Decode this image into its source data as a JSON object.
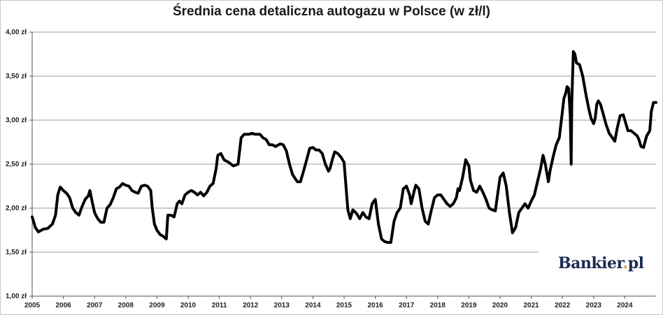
{
  "chart_data": {
    "type": "line",
    "title": "Średnia cena detaliczna autogazu w Polsce (w zł/l)",
    "xlabel": "",
    "ylabel": "",
    "xlim": [
      2005,
      2025
    ],
    "ylim": [
      1.0,
      4.0
    ],
    "grid": "horizontal",
    "y_ticks": [
      {
        "value": 1.0,
        "label": "1,00 zł"
      },
      {
        "value": 1.5,
        "label": "1,50 zł"
      },
      {
        "value": 2.0,
        "label": "2,00 zł"
      },
      {
        "value": 2.5,
        "label": "2,50 zł"
      },
      {
        "value": 3.0,
        "label": "3,00 zł"
      },
      {
        "value": 3.5,
        "label": "3,50 zł"
      },
      {
        "value": 4.0,
        "label": "4,00 zł"
      }
    ],
    "x_ticks": [
      "2005",
      "2006",
      "2007",
      "2008",
      "2009",
      "2010",
      "2011",
      "2012",
      "2013",
      "2014",
      "2015",
      "2016",
      "2017",
      "2018",
      "2019",
      "2020",
      "2021",
      "2022",
      "2023",
      "2024"
    ],
    "series": [
      {
        "color": "#000000",
        "points": [
          [
            2005.0,
            1.9
          ],
          [
            2005.1,
            1.78
          ],
          [
            2005.2,
            1.73
          ],
          [
            2005.35,
            1.76
          ],
          [
            2005.5,
            1.77
          ],
          [
            2005.65,
            1.82
          ],
          [
            2005.75,
            1.92
          ],
          [
            2005.82,
            2.15
          ],
          [
            2005.9,
            2.24
          ],
          [
            2006.0,
            2.2
          ],
          [
            2006.1,
            2.17
          ],
          [
            2006.2,
            2.12
          ],
          [
            2006.3,
            2.0
          ],
          [
            2006.4,
            1.95
          ],
          [
            2006.5,
            1.92
          ],
          [
            2006.6,
            2.02
          ],
          [
            2006.7,
            2.1
          ],
          [
            2006.8,
            2.14
          ],
          [
            2006.85,
            2.2
          ],
          [
            2006.92,
            2.08
          ],
          [
            2007.0,
            1.95
          ],
          [
            2007.1,
            1.88
          ],
          [
            2007.2,
            1.84
          ],
          [
            2007.3,
            1.84
          ],
          [
            2007.4,
            2.0
          ],
          [
            2007.5,
            2.04
          ],
          [
            2007.6,
            2.12
          ],
          [
            2007.7,
            2.22
          ],
          [
            2007.8,
            2.24
          ],
          [
            2007.9,
            2.28
          ],
          [
            2008.0,
            2.26
          ],
          [
            2008.1,
            2.25
          ],
          [
            2008.2,
            2.2
          ],
          [
            2008.3,
            2.18
          ],
          [
            2008.4,
            2.17
          ],
          [
            2008.5,
            2.25
          ],
          [
            2008.6,
            2.26
          ],
          [
            2008.7,
            2.25
          ],
          [
            2008.8,
            2.2
          ],
          [
            2008.85,
            2.0
          ],
          [
            2008.92,
            1.82
          ],
          [
            2009.0,
            1.75
          ],
          [
            2009.1,
            1.7
          ],
          [
            2009.2,
            1.68
          ],
          [
            2009.3,
            1.65
          ],
          [
            2009.35,
            1.92
          ],
          [
            2009.45,
            1.92
          ],
          [
            2009.55,
            1.9
          ],
          [
            2009.65,
            2.05
          ],
          [
            2009.72,
            2.08
          ],
          [
            2009.8,
            2.05
          ],
          [
            2009.9,
            2.15
          ],
          [
            2010.0,
            2.18
          ],
          [
            2010.1,
            2.2
          ],
          [
            2010.2,
            2.18
          ],
          [
            2010.3,
            2.15
          ],
          [
            2010.4,
            2.18
          ],
          [
            2010.5,
            2.14
          ],
          [
            2010.6,
            2.18
          ],
          [
            2010.7,
            2.25
          ],
          [
            2010.8,
            2.28
          ],
          [
            2010.9,
            2.45
          ],
          [
            2010.95,
            2.6
          ],
          [
            2011.05,
            2.62
          ],
          [
            2011.15,
            2.55
          ],
          [
            2011.3,
            2.52
          ],
          [
            2011.45,
            2.48
          ],
          [
            2011.6,
            2.5
          ],
          [
            2011.7,
            2.8
          ],
          [
            2011.8,
            2.84
          ],
          [
            2011.95,
            2.84
          ],
          [
            2012.05,
            2.85
          ],
          [
            2012.15,
            2.84
          ],
          [
            2012.3,
            2.84
          ],
          [
            2012.4,
            2.8
          ],
          [
            2012.5,
            2.78
          ],
          [
            2012.6,
            2.72
          ],
          [
            2012.7,
            2.72
          ],
          [
            2012.8,
            2.7
          ],
          [
            2012.95,
            2.73
          ],
          [
            2013.05,
            2.72
          ],
          [
            2013.15,
            2.65
          ],
          [
            2013.25,
            2.5
          ],
          [
            2013.35,
            2.38
          ],
          [
            2013.5,
            2.3
          ],
          [
            2013.6,
            2.3
          ],
          [
            2013.7,
            2.42
          ],
          [
            2013.8,
            2.55
          ],
          [
            2013.9,
            2.68
          ],
          [
            2014.0,
            2.69
          ],
          [
            2014.1,
            2.66
          ],
          [
            2014.2,
            2.66
          ],
          [
            2014.3,
            2.62
          ],
          [
            2014.4,
            2.5
          ],
          [
            2014.5,
            2.42
          ],
          [
            2014.55,
            2.45
          ],
          [
            2014.62,
            2.55
          ],
          [
            2014.7,
            2.64
          ],
          [
            2014.8,
            2.62
          ],
          [
            2014.9,
            2.58
          ],
          [
            2015.0,
            2.52
          ],
          [
            2015.05,
            2.3
          ],
          [
            2015.12,
            1.98
          ],
          [
            2015.2,
            1.88
          ],
          [
            2015.28,
            1.98
          ],
          [
            2015.4,
            1.94
          ],
          [
            2015.5,
            1.88
          ],
          [
            2015.6,
            1.95
          ],
          [
            2015.7,
            1.9
          ],
          [
            2015.8,
            1.88
          ],
          [
            2015.9,
            2.05
          ],
          [
            2016.0,
            2.1
          ],
          [
            2016.1,
            1.82
          ],
          [
            2016.2,
            1.65
          ],
          [
            2016.3,
            1.62
          ],
          [
            2016.4,
            1.61
          ],
          [
            2016.5,
            1.61
          ],
          [
            2016.6,
            1.85
          ],
          [
            2016.7,
            1.95
          ],
          [
            2016.8,
            2.0
          ],
          [
            2016.9,
            2.22
          ],
          [
            2017.0,
            2.25
          ],
          [
            2017.1,
            2.15
          ],
          [
            2017.15,
            2.05
          ],
          [
            2017.25,
            2.2
          ],
          [
            2017.3,
            2.26
          ],
          [
            2017.4,
            2.22
          ],
          [
            2017.5,
            2.0
          ],
          [
            2017.6,
            1.85
          ],
          [
            2017.7,
            1.82
          ],
          [
            2017.8,
            1.98
          ],
          [
            2017.9,
            2.12
          ],
          [
            2018.0,
            2.15
          ],
          [
            2018.1,
            2.15
          ],
          [
            2018.2,
            2.1
          ],
          [
            2018.3,
            2.05
          ],
          [
            2018.4,
            2.02
          ],
          [
            2018.5,
            2.05
          ],
          [
            2018.6,
            2.12
          ],
          [
            2018.65,
            2.22
          ],
          [
            2018.7,
            2.2
          ],
          [
            2018.8,
            2.35
          ],
          [
            2018.9,
            2.55
          ],
          [
            2019.0,
            2.48
          ],
          [
            2019.05,
            2.32
          ],
          [
            2019.15,
            2.2
          ],
          [
            2019.25,
            2.18
          ],
          [
            2019.35,
            2.25
          ],
          [
            2019.45,
            2.18
          ],
          [
            2019.55,
            2.1
          ],
          [
            2019.65,
            2.0
          ],
          [
            2019.75,
            1.98
          ],
          [
            2019.85,
            1.97
          ],
          [
            2019.92,
            2.15
          ],
          [
            2020.0,
            2.35
          ],
          [
            2020.1,
            2.4
          ],
          [
            2020.2,
            2.25
          ],
          [
            2020.3,
            1.95
          ],
          [
            2020.4,
            1.72
          ],
          [
            2020.5,
            1.78
          ],
          [
            2020.6,
            1.95
          ],
          [
            2020.7,
            2.0
          ],
          [
            2020.8,
            2.05
          ],
          [
            2020.9,
            2.0
          ],
          [
            2021.0,
            2.08
          ],
          [
            2021.1,
            2.15
          ],
          [
            2021.2,
            2.3
          ],
          [
            2021.3,
            2.45
          ],
          [
            2021.38,
            2.6
          ],
          [
            2021.45,
            2.5
          ],
          [
            2021.55,
            2.3
          ],
          [
            2021.6,
            2.42
          ],
          [
            2021.7,
            2.58
          ],
          [
            2021.8,
            2.72
          ],
          [
            2021.9,
            2.8
          ],
          [
            2022.0,
            3.1
          ],
          [
            2022.05,
            3.25
          ],
          [
            2022.1,
            3.3
          ],
          [
            2022.15,
            3.38
          ],
          [
            2022.2,
            3.36
          ],
          [
            2022.25,
            3.05
          ],
          [
            2022.28,
            2.5
          ],
          [
            2022.3,
            3.2
          ],
          [
            2022.35,
            3.78
          ],
          [
            2022.4,
            3.75
          ],
          [
            2022.45,
            3.65
          ],
          [
            2022.55,
            3.63
          ],
          [
            2022.65,
            3.5
          ],
          [
            2022.75,
            3.3
          ],
          [
            2022.85,
            3.12
          ],
          [
            2022.92,
            3.02
          ],
          [
            2023.0,
            2.96
          ],
          [
            2023.05,
            3.02
          ],
          [
            2023.1,
            3.18
          ],
          [
            2023.15,
            3.22
          ],
          [
            2023.22,
            3.18
          ],
          [
            2023.3,
            3.08
          ],
          [
            2023.4,
            2.95
          ],
          [
            2023.5,
            2.85
          ],
          [
            2023.6,
            2.8
          ],
          [
            2023.68,
            2.76
          ],
          [
            2023.75,
            2.9
          ],
          [
            2023.85,
            3.05
          ],
          [
            2023.95,
            3.06
          ],
          [
            2024.0,
            3.0
          ],
          [
            2024.1,
            2.88
          ],
          [
            2024.2,
            2.88
          ],
          [
            2024.3,
            2.85
          ],
          [
            2024.4,
            2.82
          ],
          [
            2024.45,
            2.78
          ],
          [
            2024.52,
            2.7
          ],
          [
            2024.6,
            2.69
          ],
          [
            2024.7,
            2.82
          ],
          [
            2024.8,
            2.88
          ],
          [
            2024.85,
            3.1
          ],
          [
            2024.92,
            3.2
          ],
          [
            2025.0,
            3.2
          ]
        ]
      }
    ]
  },
  "watermark": {
    "brand": "Bankier",
    "brand_dot": ".",
    "brand_tld": "pl",
    "colors": {
      "text": "#1d2b50",
      "dot": "#e0a13a"
    }
  }
}
